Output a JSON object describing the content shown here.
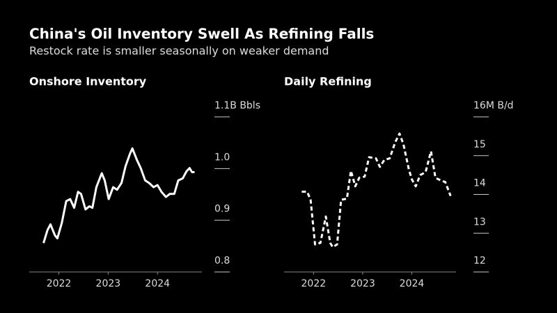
{
  "title": "China's Oil Inventory Swell As Refining Falls",
  "subtitle": "Restock rate is smaller seasonally on weaker demand",
  "chart_data": [
    {
      "type": "line",
      "title": "Onshore Inventory",
      "x": [
        2021.69,
        2021.77,
        2021.83,
        2021.92,
        2021.97,
        2022.06,
        2022.15,
        2022.23,
        2022.31,
        2022.39,
        2022.45,
        2022.54,
        2022.62,
        2022.68,
        2022.76,
        2022.87,
        2022.93,
        2023.01,
        2023.1,
        2023.18,
        2023.27,
        2023.35,
        2023.44,
        2023.49,
        2023.58,
        2023.66,
        2023.75,
        2023.83,
        2023.92,
        2024.0,
        2024.08,
        2024.17,
        2024.25,
        2024.34,
        2024.42,
        2024.51,
        2024.59,
        2024.65,
        2024.7,
        2024.75
      ],
      "series": [
        {
          "name": "Onshore Inventory",
          "color": "#ffffff",
          "dashed": false,
          "values": [
            0.856,
            0.881,
            0.892,
            0.871,
            0.865,
            0.895,
            0.937,
            0.941,
            0.924,
            0.955,
            0.951,
            0.921,
            0.927,
            0.924,
            0.964,
            0.991,
            0.977,
            0.941,
            0.964,
            0.959,
            0.972,
            1.004,
            1.028,
            1.039,
            1.017,
            1.001,
            0.977,
            0.972,
            0.964,
            0.968,
            0.955,
            0.945,
            0.951,
            0.951,
            0.977,
            0.981,
            0.995,
            1.001,
            0.993,
            0.993
          ]
        }
      ],
      "xlim": [
        2021.4,
        2024.9
      ],
      "xticks": [
        2022,
        2023,
        2024
      ],
      "ylim": [
        0.8,
        1.1
      ],
      "yticks": [
        0.8,
        0.9,
        {
          "value": 1,
          "label": "1.0"
        },
        {
          "value": 1.1,
          "label": "1.1B Bbls"
        }
      ]
    },
    {
      "type": "line",
      "title": "Daily Refining",
      "x": [
        2021.76,
        2021.87,
        2021.94,
        2022.03,
        2022.14,
        2022.25,
        2022.34,
        2022.39,
        2022.48,
        2022.56,
        2022.68,
        2022.76,
        2022.85,
        2022.93,
        2023.04,
        2023.13,
        2023.27,
        2023.35,
        2023.44,
        2023.55,
        2023.66,
        2023.75,
        2023.83,
        2023.94,
        2024.0,
        2024.08,
        2024.17,
        2024.28,
        2024.39,
        2024.48,
        2024.59,
        2024.68,
        2024.79
      ],
      "series": [
        {
          "name": "Daily Refining",
          "color": "#ffffff",
          "dashed": true,
          "values": [
            14.07,
            14.07,
            13.86,
            12.71,
            12.75,
            13.43,
            12.75,
            12.64,
            12.71,
            13.86,
            13.89,
            14.61,
            14.21,
            14.43,
            14.46,
            14.96,
            14.93,
            14.71,
            14.89,
            14.93,
            15.34,
            15.57,
            15.29,
            14.64,
            14.39,
            14.21,
            14.5,
            14.57,
            15.11,
            14.43,
            14.36,
            14.32,
            13.96
          ]
        }
      ],
      "xlim": [
        2021.4,
        2024.9
      ],
      "xticks": [
        2022,
        2023,
        2024
      ],
      "ylim": [
        12,
        16
      ],
      "yticks": [
        12,
        13,
        14,
        15,
        {
          "value": 16,
          "label": "16M B/d"
        }
      ]
    }
  ]
}
